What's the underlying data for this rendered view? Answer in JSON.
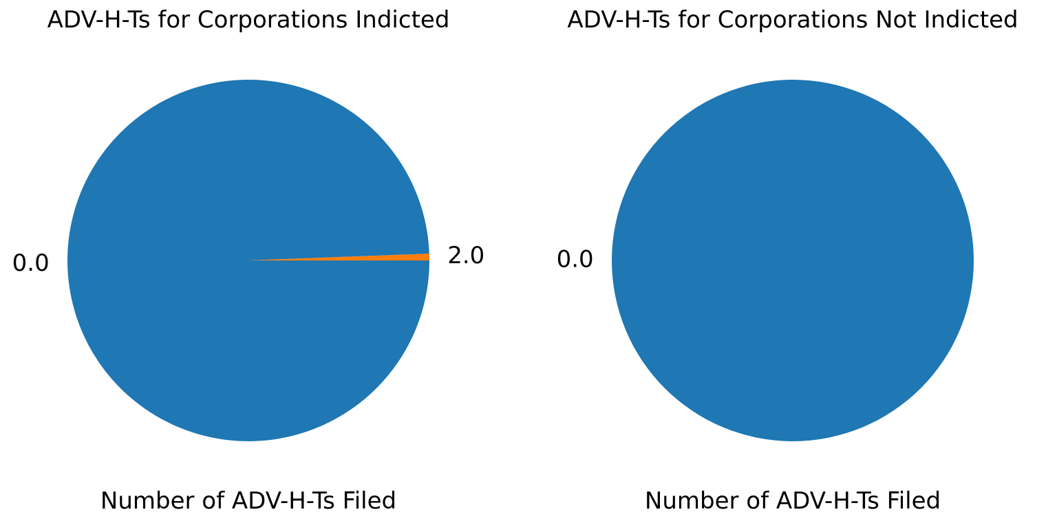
{
  "chart_data": [
    {
      "type": "pie",
      "title": "ADV-H-Ts for Corporations Indicted",
      "xlabel": "Number of ADV-H-Ts Filed",
      "categories": [
        "0.0",
        "2.0"
      ],
      "values": [
        99.4,
        0.6
      ],
      "colors": [
        "#1f77b4",
        "#ff7f0e"
      ],
      "start_angle_deg": 0,
      "direction": "clockwise"
    },
    {
      "type": "pie",
      "title": "ADV-H-Ts for Corporations Not Indicted",
      "xlabel": "Number of ADV-H-Ts Filed",
      "categories": [
        "0.0"
      ],
      "values": [
        100
      ],
      "colors": [
        "#1f77b4"
      ],
      "start_angle_deg": 0,
      "direction": "clockwise"
    }
  ]
}
